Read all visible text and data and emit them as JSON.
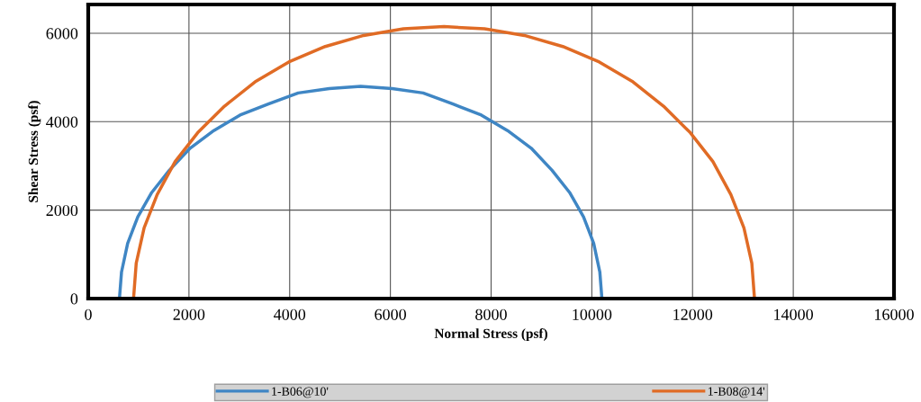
{
  "chart_data": {
    "type": "line",
    "xlabel": "Normal Stress (psf)",
    "ylabel": "Shear Stress (psf)",
    "xlim": [
      0,
      16000
    ],
    "ylim": [
      0,
      6650
    ],
    "xticks": [
      0,
      2000,
      4000,
      6000,
      8000,
      10000,
      12000,
      14000,
      16000
    ],
    "yticks": [
      0,
      2000,
      4000,
      6000
    ],
    "grid": true,
    "legend": "bottom",
    "marker": "none",
    "line_style": "solid",
    "series": [
      {
        "name": "1-B06@10'",
        "color": "#3f86c4",
        "x": [
          620,
          661,
          783,
          985,
          1262,
          1610,
          2023,
          2494,
          3015,
          3577,
          4170,
          4785,
          5410,
          6035,
          6650,
          7243,
          7805,
          8326,
          8797,
          9210,
          9558,
          9835,
          10037,
          10159,
          10200
        ],
        "values": [
          0,
          600,
          1250,
          1850,
          2400,
          2900,
          3400,
          3800,
          4150,
          4400,
          4650,
          4750,
          4800,
          4750,
          4650,
          4400,
          4150,
          3800,
          3400,
          2900,
          2400,
          1850,
          1250,
          600,
          0
        ]
      },
      {
        "name": "1-B08@14'",
        "color": "#e06b25",
        "x": [
          900,
          953,
          1110,
          1369,
          1726,
          2174,
          2706,
          3312,
          3982,
          4706,
          5469,
          6260,
          7065,
          7870,
          8661,
          9424,
          10148,
          10818,
          11424,
          11956,
          12404,
          12761,
          13020,
          13177,
          13230
        ],
        "values": [
          0,
          800,
          1600,
          2350,
          3100,
          3750,
          4350,
          4900,
          5350,
          5700,
          5950,
          6100,
          6150,
          6100,
          5950,
          5700,
          5350,
          4900,
          4350,
          3750,
          3100,
          2350,
          1600,
          800,
          0
        ]
      }
    ]
  }
}
